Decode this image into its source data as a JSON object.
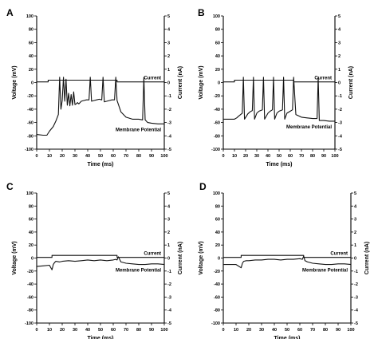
{
  "chart_data": [
    {
      "type": "line",
      "panel_label": "A",
      "xlabel": "Time (ms)",
      "ylabel_left": "Voltage (mV)",
      "ylabel_right": "Current (nA)",
      "xlim": [
        0,
        100
      ],
      "ylim_left": [
        -100,
        100
      ],
      "ylim_right": [
        -5,
        5
      ],
      "x_ticks": [
        "0",
        "10",
        "20",
        "30",
        "40",
        "50",
        "60",
        "70",
        "80",
        "90",
        "100"
      ],
      "y_ticks_left": [
        "100",
        "80",
        "60",
        "40",
        "20",
        "0",
        "-20",
        "-40",
        "-60",
        "-80",
        "-100"
      ],
      "y_ticks_right": [
        "5",
        "4",
        "3",
        "2",
        "1",
        "0",
        "-1",
        "-2",
        "-3",
        "-4",
        "-5"
      ],
      "series": [
        {
          "name": "Current",
          "axis": "right",
          "x": [
            0,
            9,
            9,
            63,
            63,
            100
          ],
          "y": [
            0.05,
            0.05,
            0.18,
            0.18,
            0.05,
            0.05
          ]
        },
        {
          "name": "Membrane Potential",
          "axis": "left",
          "x": [
            0,
            5,
            8,
            10,
            13,
            15,
            17,
            18,
            19,
            20,
            21,
            22,
            23,
            24,
            25,
            26,
            27,
            28,
            29,
            30,
            31,
            32,
            33,
            35,
            37,
            39,
            41,
            42,
            43,
            45,
            47,
            49,
            51,
            52,
            53,
            55,
            57,
            59,
            61,
            62,
            63,
            66,
            70,
            75,
            80,
            83,
            84,
            85,
            87,
            90,
            95,
            100
          ],
          "y": [
            -78,
            -79,
            -79,
            -73,
            -66,
            -58,
            -48,
            8,
            -40,
            -27,
            8,
            -28,
            5,
            -34,
            -16,
            -35,
            -18,
            -34,
            -14,
            -33,
            -32,
            -30,
            -32,
            -28,
            -27,
            -26,
            -26,
            8,
            -28,
            -27,
            -26,
            -25,
            -26,
            8,
            -29,
            -28,
            -27,
            -26,
            -26,
            8,
            -27,
            -44,
            -52,
            -55,
            -55,
            -56,
            8,
            -56,
            -60,
            -61,
            -62,
            -62
          ]
        }
      ]
    },
    {
      "type": "line",
      "panel_label": "B",
      "xlabel": "Time (ms)",
      "ylabel_left": "Voltage (mV)",
      "ylabel_right": "Current (nA)",
      "xlim": [
        0,
        100
      ],
      "ylim_left": [
        -100,
        100
      ],
      "ylim_right": [
        -5,
        5
      ],
      "x_ticks": [
        "0",
        "10",
        "20",
        "30",
        "40",
        "50",
        "60",
        "70",
        "80",
        "90",
        "100"
      ],
      "y_ticks_left": [
        "100",
        "80",
        "60",
        "40",
        "20",
        "0",
        "-20",
        "-40",
        "-60",
        "-80",
        "-100"
      ],
      "y_ticks_right": [
        "5",
        "4",
        "3",
        "2",
        "1",
        "0",
        "-1",
        "-2",
        "-3",
        "-4",
        "-5"
      ],
      "series": [
        {
          "name": "Current",
          "axis": "right",
          "x": [
            0,
            10,
            10,
            63,
            63,
            100
          ],
          "y": [
            0.05,
            0.05,
            0.18,
            0.18,
            0.05,
            0.05
          ]
        },
        {
          "name": "Membrane Potential",
          "axis": "left",
          "x": [
            0,
            10,
            12,
            14,
            17,
            18,
            19,
            22,
            24,
            26,
            27,
            28,
            30,
            32,
            35,
            36,
            37,
            40,
            42,
            44,
            45,
            46,
            48,
            50,
            53,
            54,
            55,
            57,
            60,
            62,
            63,
            65,
            70,
            75,
            80,
            84,
            85,
            86,
            90,
            95,
            100
          ],
          "y": [
            -55,
            -55,
            -53,
            -50,
            -46,
            8,
            -55,
            -47,
            -44,
            -42,
            8,
            -55,
            -46,
            -43,
            -41,
            8,
            -55,
            -46,
            -43,
            -41,
            8,
            -55,
            -46,
            -43,
            -41,
            8,
            -55,
            -46,
            -43,
            -41,
            8,
            -48,
            -52,
            -53,
            -54,
            -54,
            8,
            -57,
            -57,
            -58,
            -58
          ]
        }
      ]
    },
    {
      "type": "line",
      "panel_label": "C",
      "xlabel": "Time (ms)",
      "ylabel_left": "Voltage (mV)",
      "ylabel_right": "Current (nA)",
      "xlim": [
        0,
        100
      ],
      "ylim_left": [
        -100,
        100
      ],
      "ylim_right": [
        -5,
        5
      ],
      "x_ticks": [
        "0",
        "10",
        "20",
        "30",
        "40",
        "50",
        "60",
        "70",
        "80",
        "90",
        "100"
      ],
      "y_ticks_left": [
        "100",
        "80",
        "60",
        "40",
        "20",
        "0",
        "-20",
        "-40",
        "-60",
        "-80",
        "-100"
      ],
      "y_ticks_right": [
        "5",
        "4",
        "3",
        "2",
        "1",
        "0",
        "-1",
        "-2",
        "-3",
        "-4",
        "-5"
      ],
      "series": [
        {
          "name": "Current",
          "axis": "right",
          "x": [
            0,
            12,
            12,
            63,
            63,
            100
          ],
          "y": [
            0.05,
            0.05,
            0.2,
            0.2,
            0.05,
            0.05
          ]
        },
        {
          "name": "Membrane Potential",
          "axis": "left",
          "x": [
            0,
            5,
            10,
            12,
            13,
            14,
            15,
            18,
            20,
            25,
            30,
            35,
            40,
            45,
            50,
            55,
            60,
            62,
            63,
            64,
            66,
            70,
            75,
            80,
            85,
            90,
            95,
            100
          ],
          "y": [
            -13,
            -12,
            -11,
            -18,
            -10,
            -7,
            -5,
            -6,
            -5,
            -4,
            -5,
            -4,
            -3,
            -4,
            -3,
            -4,
            -3,
            -2,
            -3,
            2,
            -6,
            -8,
            -9,
            -10,
            -10,
            -9,
            -9,
            -10
          ]
        }
      ]
    },
    {
      "type": "line",
      "panel_label": "D",
      "xlabel": "Time (ms)",
      "ylabel_left": "Voltage (mV)",
      "ylabel_right": "Current (nA)",
      "xlim": [
        0,
        100
      ],
      "ylim_left": [
        -100,
        100
      ],
      "ylim_right": [
        -5,
        5
      ],
      "x_ticks": [
        "0",
        "10",
        "20",
        "30",
        "40",
        "50",
        "60",
        "70",
        "80",
        "90",
        "100"
      ],
      "y_ticks_left": [
        "100",
        "80",
        "60",
        "40",
        "20",
        "0",
        "-20",
        "-40",
        "-60",
        "-80",
        "-100"
      ],
      "y_ticks_right": [
        "5",
        "4",
        "3",
        "2",
        "1",
        "0",
        "-1",
        "-2",
        "-3",
        "-4",
        "-5"
      ],
      "series": [
        {
          "name": "Current",
          "axis": "right",
          "x": [
            0,
            14,
            14,
            63,
            63,
            100
          ],
          "y": [
            0.05,
            0.05,
            0.2,
            0.2,
            0.05,
            0.05
          ]
        },
        {
          "name": "Membrane Potential",
          "axis": "left",
          "x": [
            0,
            5,
            10,
            14,
            15,
            16,
            18,
            20,
            25,
            30,
            35,
            40,
            45,
            50,
            55,
            60,
            62,
            63,
            64,
            66,
            70,
            75,
            80,
            85,
            90,
            95,
            100
          ],
          "y": [
            -10,
            -10,
            -10,
            -15,
            -8,
            -5,
            -4,
            -4,
            -3,
            -3,
            -2,
            -2,
            -3,
            -2,
            -2,
            -1,
            -2,
            3,
            -4,
            -6,
            -8,
            -9,
            -10,
            -10,
            -9,
            -9,
            -10
          ]
        }
      ]
    }
  ]
}
